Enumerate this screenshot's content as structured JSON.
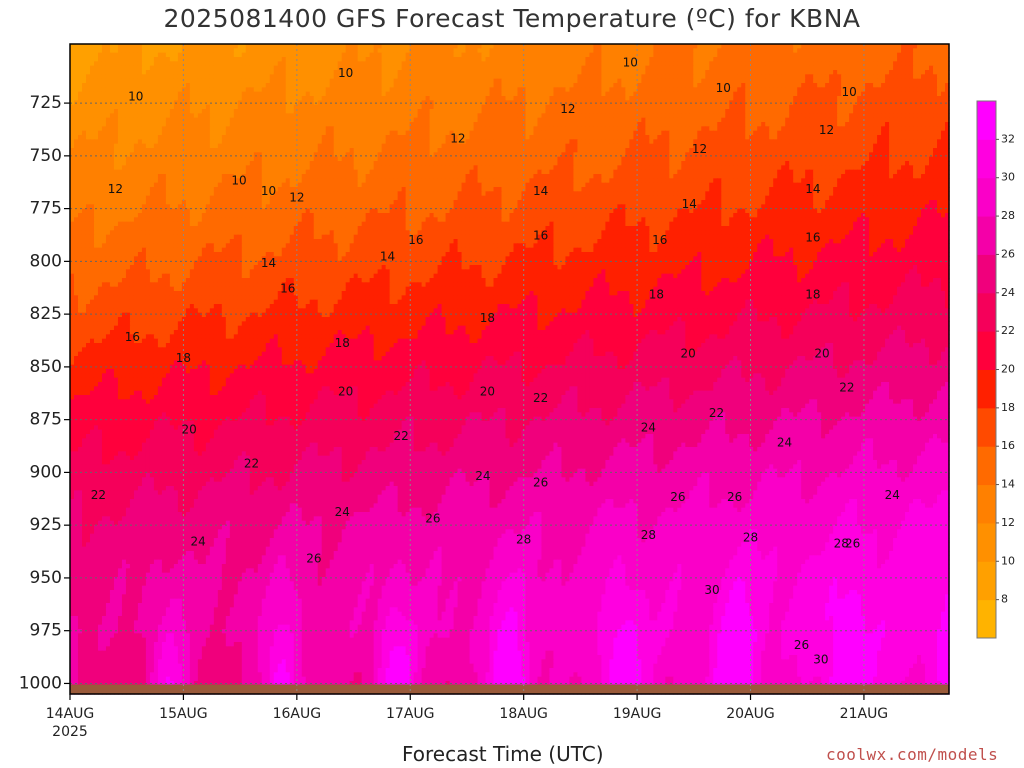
{
  "title": "2025081400 GFS Forecast Temperature (ºC) for KBNA",
  "xlabel": "Forecast Time (UTC)",
  "credit": "coolwx.com/models",
  "chart_data": {
    "type": "heatmap",
    "title": "2025081400 GFS Forecast Temperature (ºC) for KBNA",
    "xlabel": "Forecast Time (UTC)",
    "ylabel": "",
    "x_axis": {
      "range_days": [
        0,
        7.75
      ],
      "ticks": [
        {
          "day": 0,
          "label": "14AUG",
          "sublabel": "2025"
        },
        {
          "day": 1,
          "label": "15AUG"
        },
        {
          "day": 2,
          "label": "16AUG"
        },
        {
          "day": 3,
          "label": "17AUG"
        },
        {
          "day": 4,
          "label": "18AUG"
        },
        {
          "day": 5,
          "label": "19AUG"
        },
        {
          "day": 6,
          "label": "20AUG"
        },
        {
          "day": 7,
          "label": "21AUG"
        }
      ]
    },
    "y_axis": {
      "range_hpa": [
        697,
        1005
      ],
      "inverted": true,
      "ticks": [
        725,
        750,
        775,
        800,
        825,
        850,
        875,
        900,
        925,
        950,
        975,
        1000
      ]
    },
    "grid": true,
    "colorbar": {
      "placement": "right",
      "levels": [
        6,
        8,
        10,
        12,
        14,
        16,
        18,
        20,
        22,
        24,
        26,
        28,
        30,
        32,
        34
      ],
      "labels": [
        8,
        10,
        12,
        14,
        16,
        18,
        20,
        22,
        24,
        26,
        28,
        30,
        32
      ],
      "colors": [
        "#ffb300",
        "#ffa000",
        "#ff9000",
        "#ff8000",
        "#ff6a00",
        "#ff4a00",
        "#ff2000",
        "#ff003c",
        "#f5005a",
        "#f0007c",
        "#f400a8",
        "#fa00c8",
        "#ff00e0",
        "#ff00ff"
      ]
    },
    "temperature_profile": {
      "base_temp_by_pressure": [
        {
          "p": 700,
          "t": 9.5
        },
        {
          "p": 725,
          "t": 10.8
        },
        {
          "p": 750,
          "t": 12.0
        },
        {
          "p": 775,
          "t": 13.4
        },
        {
          "p": 800,
          "t": 15.0
        },
        {
          "p": 825,
          "t": 16.8
        },
        {
          "p": 850,
          "t": 18.8
        },
        {
          "p": 875,
          "t": 20.8
        },
        {
          "p": 900,
          "t": 22.6
        },
        {
          "p": 925,
          "t": 24.2
        },
        {
          "p": 950,
          "t": 25.0
        },
        {
          "p": 975,
          "t": 25.4
        },
        {
          "p": 1000,
          "t": 25.6
        }
      ],
      "warming_trend_c_per_day_at_850": 0.9,
      "diurnal_peak_hour_utc": 21,
      "diurnal_surface_max": [
        31,
        31.5,
        32,
        32.5,
        33,
        32.5,
        32,
        31
      ]
    },
    "contour_labels": [
      {
        "day": 0.58,
        "p": 722,
        "label": "10"
      },
      {
        "day": 2.43,
        "p": 711,
        "label": "10"
      },
      {
        "day": 1.49,
        "p": 762,
        "label": "10"
      },
      {
        "day": 1.75,
        "p": 767,
        "label": "10"
      },
      {
        "day": 4.94,
        "p": 706,
        "label": "10"
      },
      {
        "day": 5.76,
        "p": 718,
        "label": "10"
      },
      {
        "day": 6.87,
        "p": 720,
        "label": "10"
      },
      {
        "day": 0.4,
        "p": 766,
        "label": "12"
      },
      {
        "day": 2.0,
        "p": 770,
        "label": "12"
      },
      {
        "day": 3.42,
        "p": 742,
        "label": "12"
      },
      {
        "day": 4.39,
        "p": 728,
        "label": "12"
      },
      {
        "day": 5.55,
        "p": 747,
        "label": "12"
      },
      {
        "day": 6.67,
        "p": 738,
        "label": "12"
      },
      {
        "day": 1.75,
        "p": 801,
        "label": "14"
      },
      {
        "day": 2.8,
        "p": 798,
        "label": "14"
      },
      {
        "day": 4.15,
        "p": 767,
        "label": "14"
      },
      {
        "day": 5.46,
        "p": 773,
        "label": "14"
      },
      {
        "day": 6.55,
        "p": 766,
        "label": "14"
      },
      {
        "day": 0.55,
        "p": 836,
        "label": "16"
      },
      {
        "day": 1.92,
        "p": 813,
        "label": "16"
      },
      {
        "day": 3.05,
        "p": 790,
        "label": "16"
      },
      {
        "day": 4.15,
        "p": 788,
        "label": "16"
      },
      {
        "day": 5.2,
        "p": 790,
        "label": "16"
      },
      {
        "day": 6.55,
        "p": 789,
        "label": "16"
      },
      {
        "day": 1.0,
        "p": 846,
        "label": "18"
      },
      {
        "day": 2.4,
        "p": 839,
        "label": "18"
      },
      {
        "day": 3.68,
        "p": 827,
        "label": "18"
      },
      {
        "day": 5.17,
        "p": 816,
        "label": "18"
      },
      {
        "day": 6.55,
        "p": 816,
        "label": "18"
      },
      {
        "day": 2.43,
        "p": 862,
        "label": "20"
      },
      {
        "day": 3.68,
        "p": 862,
        "label": "20"
      },
      {
        "day": 5.45,
        "p": 844,
        "label": "20"
      },
      {
        "day": 6.63,
        "p": 844,
        "label": "20"
      },
      {
        "day": 1.05,
        "p": 880,
        "label": "20"
      },
      {
        "day": 0.25,
        "p": 911,
        "label": "22"
      },
      {
        "day": 1.6,
        "p": 896,
        "label": "22"
      },
      {
        "day": 2.92,
        "p": 883,
        "label": "22"
      },
      {
        "day": 4.15,
        "p": 865,
        "label": "22"
      },
      {
        "day": 5.7,
        "p": 872,
        "label": "22"
      },
      {
        "day": 6.85,
        "p": 860,
        "label": "22"
      },
      {
        "day": 1.13,
        "p": 933,
        "label": "24"
      },
      {
        "day": 2.4,
        "p": 919,
        "label": "24"
      },
      {
        "day": 3.64,
        "p": 902,
        "label": "24"
      },
      {
        "day": 5.1,
        "p": 879,
        "label": "24"
      },
      {
        "day": 6.3,
        "p": 886,
        "label": "24"
      },
      {
        "day": 7.25,
        "p": 911,
        "label": "24"
      },
      {
        "day": 2.15,
        "p": 941,
        "label": "26"
      },
      {
        "day": 3.2,
        "p": 922,
        "label": "26"
      },
      {
        "day": 4.15,
        "p": 905,
        "label": "26"
      },
      {
        "day": 5.36,
        "p": 912,
        "label": "26"
      },
      {
        "day": 5.86,
        "p": 912,
        "label": "26"
      },
      {
        "day": 6.9,
        "p": 934,
        "label": "26"
      },
      {
        "day": 4.0,
        "p": 932,
        "label": "28"
      },
      {
        "day": 5.1,
        "p": 930,
        "label": "28"
      },
      {
        "day": 6.0,
        "p": 931,
        "label": "28"
      },
      {
        "day": 6.8,
        "p": 934,
        "label": "28"
      },
      {
        "day": 5.66,
        "p": 956,
        "label": "30"
      },
      {
        "day": 6.62,
        "p": 989,
        "label": "30"
      },
      {
        "day": 6.45,
        "p": 982,
        "label": "26"
      }
    ],
    "ground": {
      "from_hpa": 1000.5,
      "color": "#9a5a3a"
    }
  }
}
